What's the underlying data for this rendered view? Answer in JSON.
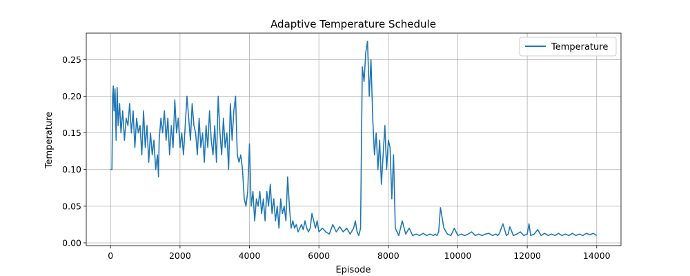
{
  "chart_data": {
    "type": "line",
    "title": "Adaptive Temperature Schedule",
    "xlabel": "Episode",
    "ylabel": "Temperature",
    "xlim": [
      -700,
      14700
    ],
    "ylim": [
      -0.0038,
      0.2861
    ],
    "xticks": [
      0,
      2000,
      4000,
      6000,
      8000,
      10000,
      12000,
      14000
    ],
    "xtick_labels": [
      "0",
      "2000",
      "4000",
      "6000",
      "8000",
      "10000",
      "12000",
      "14000"
    ],
    "yticks": [
      0.0,
      0.05,
      0.1,
      0.15,
      0.2,
      0.25
    ],
    "ytick_labels": [
      "0.00",
      "0.05",
      "0.10",
      "0.15",
      "0.20",
      "0.25"
    ],
    "grid": true,
    "legend_position": "top-right",
    "series": [
      {
        "name": "Temperature",
        "color": "#1f77b4",
        "x": [
          0,
          40,
          60,
          80,
          100,
          130,
          160,
          190,
          220,
          260,
          300,
          350,
          400,
          450,
          500,
          550,
          600,
          650,
          700,
          750,
          800,
          850,
          900,
          950,
          1000,
          1050,
          1100,
          1150,
          1200,
          1250,
          1300,
          1350,
          1380,
          1400,
          1450,
          1500,
          1550,
          1600,
          1650,
          1700,
          1750,
          1800,
          1850,
          1900,
          1950,
          2000,
          2050,
          2100,
          2150,
          2200,
          2250,
          2300,
          2350,
          2400,
          2450,
          2500,
          2550,
          2600,
          2650,
          2700,
          2750,
          2800,
          2850,
          2900,
          2950,
          3000,
          3050,
          3100,
          3150,
          3200,
          3250,
          3300,
          3350,
          3400,
          3450,
          3500,
          3550,
          3600,
          3650,
          3700,
          3750,
          3800,
          3850,
          3900,
          3950,
          4000,
          4050,
          4100,
          4150,
          4200,
          4250,
          4300,
          4350,
          4400,
          4450,
          4500,
          4550,
          4600,
          4650,
          4700,
          4750,
          4800,
          4850,
          4900,
          4950,
          5000,
          5050,
          5100,
          5150,
          5200,
          5250,
          5300,
          5350,
          5400,
          5450,
          5500,
          5550,
          5600,
          5650,
          5700,
          5750,
          5800,
          5850,
          5900,
          5950,
          6000,
          6100,
          6200,
          6300,
          6400,
          6500,
          6600,
          6700,
          6800,
          6900,
          7000,
          7050,
          7100,
          7150,
          7200,
          7250,
          7300,
          7350,
          7400,
          7450,
          7500,
          7550,
          7600,
          7650,
          7700,
          7750,
          7800,
          7850,
          7900,
          7950,
          8000,
          8050,
          8100,
          8150,
          8200,
          8300,
          8400,
          8500,
          8600,
          8700,
          8800,
          8900,
          9000,
          9100,
          9200,
          9300,
          9350,
          9400,
          9450,
          9500,
          9600,
          9700,
          9800,
          9900,
          10000,
          10100,
          10200,
          10300,
          10400,
          10500,
          10600,
          10700,
          10800,
          10900,
          11000,
          11100,
          11150,
          11200,
          11300,
          11400,
          11450,
          11500,
          11600,
          11700,
          11800,
          11900,
          12000,
          12050,
          12100,
          12200,
          12300,
          12400,
          12500,
          12600,
          12700,
          12800,
          12900,
          13000,
          13100,
          13200,
          13300,
          13400,
          13500,
          13600,
          13700,
          13800,
          13900,
          14000
        ],
        "y": [
          0.1,
          0.1,
          0.2,
          0.214,
          0.18,
          0.21,
          0.14,
          0.212,
          0.16,
          0.19,
          0.15,
          0.18,
          0.14,
          0.17,
          0.16,
          0.19,
          0.15,
          0.18,
          0.13,
          0.17,
          0.15,
          0.16,
          0.12,
          0.18,
          0.13,
          0.16,
          0.11,
          0.15,
          0.12,
          0.14,
          0.1,
          0.12,
          0.09,
          0.14,
          0.17,
          0.15,
          0.18,
          0.14,
          0.17,
          0.12,
          0.16,
          0.13,
          0.195,
          0.15,
          0.17,
          0.13,
          0.15,
          0.12,
          0.16,
          0.2,
          0.17,
          0.14,
          0.19,
          0.16,
          0.15,
          0.12,
          0.17,
          0.13,
          0.15,
          0.11,
          0.16,
          0.13,
          0.18,
          0.14,
          0.12,
          0.16,
          0.11,
          0.2,
          0.15,
          0.12,
          0.17,
          0.13,
          0.15,
          0.1,
          0.19,
          0.14,
          0.18,
          0.2,
          0.12,
          0.11,
          0.12,
          0.1,
          0.06,
          0.05,
          0.07,
          0.135,
          0.05,
          0.07,
          0.03,
          0.06,
          0.05,
          0.07,
          0.04,
          0.06,
          0.03,
          0.07,
          0.05,
          0.08,
          0.04,
          0.06,
          0.03,
          0.05,
          0.02,
          0.06,
          0.04,
          0.05,
          0.03,
          0.09,
          0.05,
          0.02,
          0.03,
          0.02,
          0.025,
          0.015,
          0.02,
          0.025,
          0.018,
          0.03,
          0.02,
          0.015,
          0.02,
          0.04,
          0.03,
          0.02,
          0.03,
          0.015,
          0.02,
          0.015,
          0.012,
          0.025,
          0.015,
          0.022,
          0.015,
          0.02,
          0.012,
          0.02,
          0.03,
          0.015,
          0.01,
          0.02,
          0.24,
          0.22,
          0.26,
          0.275,
          0.2,
          0.25,
          0.17,
          0.12,
          0.15,
          0.1,
          0.14,
          0.08,
          0.12,
          0.16,
          0.1,
          0.14,
          0.13,
          0.06,
          0.12,
          0.02,
          0.01,
          0.03,
          0.012,
          0.02,
          0.01,
          0.012,
          0.01,
          0.013,
          0.01,
          0.012,
          0.01,
          0.012,
          0.01,
          0.015,
          0.048,
          0.02,
          0.012,
          0.01,
          0.02,
          0.01,
          0.012,
          0.01,
          0.012,
          0.015,
          0.01,
          0.012,
          0.01,
          0.012,
          0.013,
          0.01,
          0.012,
          0.01,
          0.013,
          0.026,
          0.01,
          0.012,
          0.022,
          0.01,
          0.012,
          0.015,
          0.01,
          0.012,
          0.026,
          0.01,
          0.012,
          0.018,
          0.01,
          0.013,
          0.01,
          0.012,
          0.01,
          0.013,
          0.01,
          0.012,
          0.01,
          0.013,
          0.01,
          0.012,
          0.01,
          0.013,
          0.011,
          0.013,
          0.01
        ]
      }
    ]
  }
}
